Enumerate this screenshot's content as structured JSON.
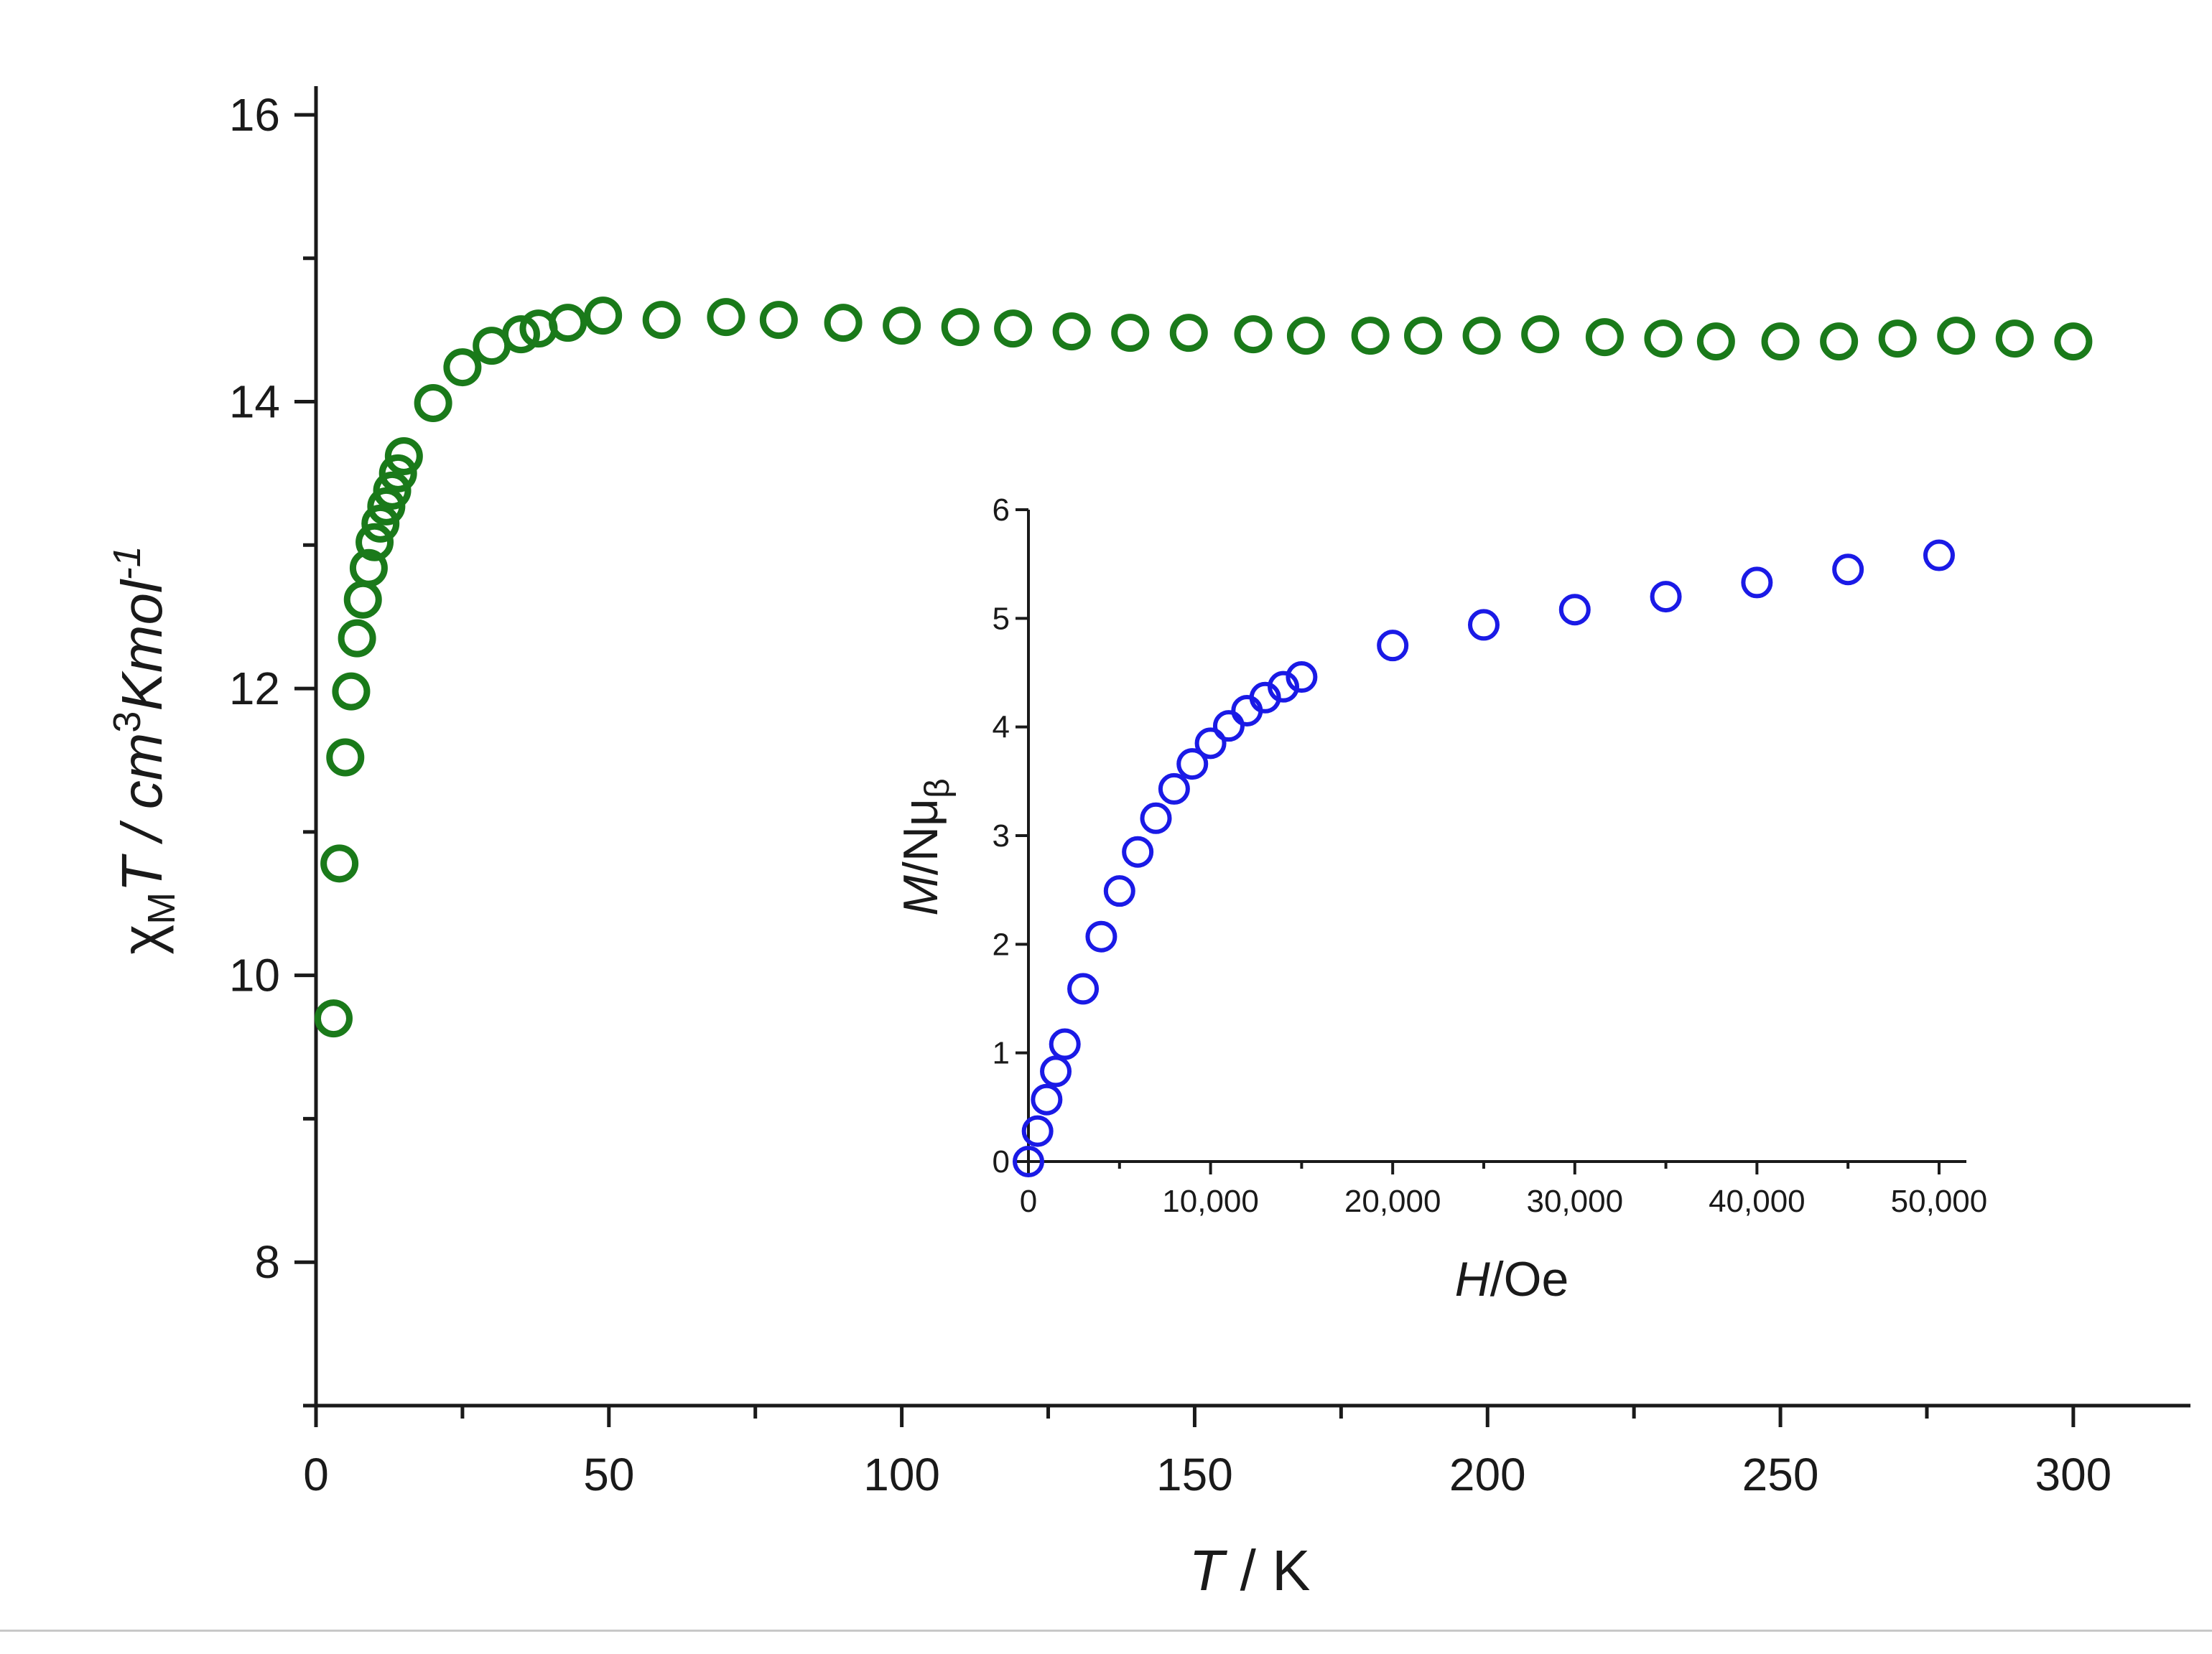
{
  "colors": {
    "main_series": "#1a7a1a",
    "inset_series": "#1a1ae6",
    "axis": "#1a1a1a",
    "rule": "#c8c8c8"
  },
  "chart_data": [
    {
      "id": "main",
      "type": "scatter",
      "marker": "open-circle",
      "xlabel": "T / K",
      "xlabel_parts": {
        "var": "T",
        "unit": " / K"
      },
      "ylabel": "χMT / cm3Kmol-1",
      "ylabel_parts": {
        "chi": "χ",
        "sub": "M",
        "var": "T",
        "unit_a": " / cm",
        "sup_a": "3",
        "unit_b": "Kmol",
        "sup_b": "-1"
      },
      "xlim": [
        0,
        320
      ],
      "ylim": [
        7,
        16.2
      ],
      "xticks": [
        0,
        50,
        100,
        150,
        200,
        250,
        300
      ],
      "xtick_labels": [
        "0",
        "50",
        "100",
        "150",
        "200",
        "250",
        "300"
      ],
      "yticks": [
        8,
        10,
        12,
        14,
        16
      ],
      "ytick_labels": [
        "8",
        "10",
        "12",
        "14",
        "16"
      ],
      "y_minor_ticks": [
        7,
        9,
        11,
        13,
        15
      ],
      "x_minor_step": 25,
      "series": [
        {
          "name": "χMT",
          "x": [
            3,
            4,
            5,
            6,
            7,
            8,
            9,
            10,
            11,
            12,
            13,
            14,
            15,
            20,
            25,
            30,
            35,
            38,
            43,
            49,
            59,
            70,
            79,
            90,
            100,
            110,
            119,
            129,
            139,
            149,
            160,
            169,
            180,
            189,
            199,
            209,
            220,
            230,
            239,
            250,
            260,
            270,
            280,
            290,
            300
          ],
          "y": [
            9.7,
            10.78,
            11.52,
            11.98,
            12.35,
            12.62,
            12.84,
            13.02,
            13.15,
            13.27,
            13.38,
            13.5,
            13.62,
            13.99,
            14.24,
            14.39,
            14.47,
            14.51,
            14.55,
            14.6,
            14.57,
            14.59,
            14.57,
            14.55,
            14.53,
            14.52,
            14.51,
            14.49,
            14.48,
            14.48,
            14.47,
            14.46,
            14.46,
            14.46,
            14.46,
            14.47,
            14.45,
            14.44,
            14.42,
            14.42,
            14.42,
            14.44,
            14.46,
            14.44,
            14.42
          ]
        }
      ]
    },
    {
      "id": "inset",
      "type": "scatter",
      "marker": "open-circle",
      "xlabel": "H/Oe",
      "xlabel_parts": {
        "var": "H",
        "unit": "/Oe"
      },
      "ylabel": "M/Nμβ",
      "ylabel_parts": {
        "var": "M",
        "unit": "/Nμ",
        "sub": "β"
      },
      "xlim": [
        0,
        51500
      ],
      "ylim": [
        0,
        6
      ],
      "xticks": [
        0,
        10000,
        20000,
        30000,
        40000,
        50000
      ],
      "xtick_labels": [
        "0",
        "10,000",
        "20,000",
        "30,000",
        "40,000",
        "50,000"
      ],
      "x_minor_step": 5000,
      "yticks": [
        0,
        1,
        2,
        3,
        4,
        5,
        6
      ],
      "ytick_labels": [
        "0",
        "1",
        "2",
        "3",
        "4",
        "5",
        "6"
      ],
      "series": [
        {
          "name": "M/Nμβ",
          "x": [
            0,
            500,
            1000,
            1500,
            2000,
            3000,
            4000,
            5000,
            6000,
            7000,
            8000,
            9000,
            10000,
            11000,
            12000,
            13000,
            14000,
            15000,
            20000,
            25000,
            30000,
            35000,
            40000,
            45000,
            50000
          ],
          "y": [
            0.0,
            0.28,
            0.57,
            0.83,
            1.08,
            1.59,
            2.07,
            2.49,
            2.85,
            3.16,
            3.43,
            3.66,
            3.85,
            4.01,
            4.15,
            4.27,
            4.37,
            4.46,
            4.75,
            4.94,
            5.08,
            5.2,
            5.33,
            5.45,
            5.58
          ]
        }
      ]
    }
  ]
}
